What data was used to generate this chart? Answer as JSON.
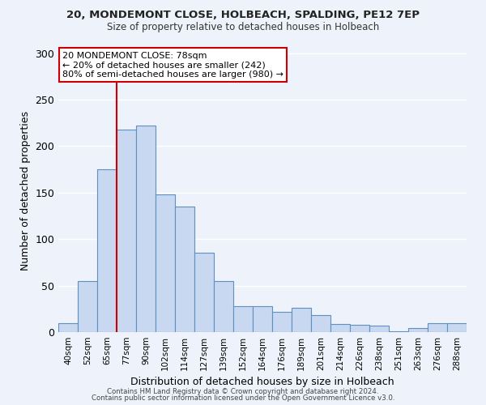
{
  "title1": "20, MONDEMONT CLOSE, HOLBEACH, SPALDING, PE12 7EP",
  "title2": "Size of property relative to detached houses in Holbeach",
  "xlabel": "Distribution of detached houses by size in Holbeach",
  "ylabel": "Number of detached properties",
  "bar_labels": [
    "40sqm",
    "52sqm",
    "65sqm",
    "77sqm",
    "90sqm",
    "102sqm",
    "114sqm",
    "127sqm",
    "139sqm",
    "152sqm",
    "164sqm",
    "176sqm",
    "189sqm",
    "201sqm",
    "214sqm",
    "226sqm",
    "238sqm",
    "251sqm",
    "263sqm",
    "276sqm",
    "288sqm"
  ],
  "bar_values": [
    10,
    55,
    175,
    218,
    222,
    148,
    135,
    85,
    55,
    28,
    28,
    22,
    26,
    18,
    9,
    8,
    7,
    1,
    4,
    10,
    10
  ],
  "bar_color": "#c8d8f0",
  "bar_edge_color": "#6090c0",
  "annotation_line1": "20 MONDEMONT CLOSE: 78sqm",
  "annotation_line2": "← 20% of detached houses are smaller (242)",
  "annotation_line3": "80% of semi-detached houses are larger (980) →",
  "annotation_box_color": "#ffffff",
  "annotation_border_color": "#cc0000",
  "vline_color": "#cc0000",
  "vline_x": 2.5,
  "ylim": [
    0,
    305
  ],
  "yticks": [
    0,
    50,
    100,
    150,
    200,
    250,
    300
  ],
  "footer1": "Contains HM Land Registry data © Crown copyright and database right 2024.",
  "footer2": "Contains public sector information licensed under the Open Government Licence v3.0.",
  "bg_color": "#eef2fa",
  "grid_color": "#ffffff"
}
